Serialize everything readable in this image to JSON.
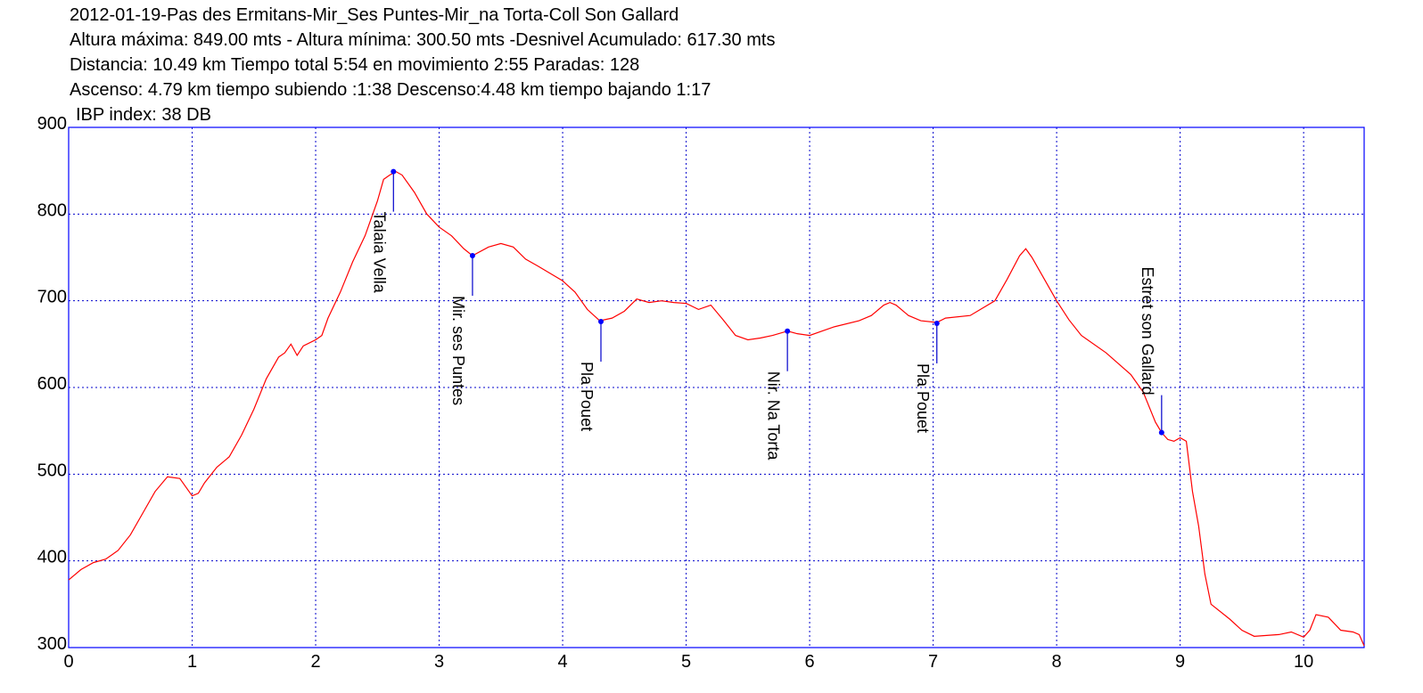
{
  "chart_data": {
    "type": "line",
    "title": "2012-01-19-Pas des Ermitans-Mir_Ses Puntes-Mir_na Torta-Coll Son Gallard",
    "subtitle_lines": [
      "Altura máxima: 849.00 mts - Altura mínima: 300.50 mts -Desnivel Acumulado: 617.30 mts",
      "Distancia: 10.49 km  Tiempo total 5:54  en movimiento 2:55 Paradas: 128",
      "Ascenso: 4.79 km  tiempo subiendo :1:38  Descenso:4.48 km tiempo bajando 1:17",
      "IBP index: 38 DB"
    ],
    "x": [
      0,
      0.1,
      0.2,
      0.3,
      0.4,
      0.5,
      0.6,
      0.7,
      0.8,
      0.9,
      1.0,
      1.05,
      1.1,
      1.2,
      1.3,
      1.4,
      1.5,
      1.6,
      1.7,
      1.75,
      1.8,
      1.85,
      1.9,
      2.0,
      2.05,
      2.1,
      2.2,
      2.3,
      2.4,
      2.5,
      2.55,
      2.6,
      2.65,
      2.7,
      2.8,
      2.9,
      3.0,
      3.1,
      3.2,
      3.27,
      3.4,
      3.5,
      3.6,
      3.7,
      3.8,
      4.0,
      4.1,
      4.2,
      4.3,
      4.4,
      4.5,
      4.6,
      4.7,
      4.8,
      4.9,
      5.0,
      5.1,
      5.2,
      5.3,
      5.4,
      5.5,
      5.6,
      5.7,
      5.82,
      5.9,
      6.0,
      6.1,
      6.2,
      6.4,
      6.5,
      6.6,
      6.65,
      6.7,
      6.8,
      6.9,
      7.03,
      7.1,
      7.3,
      7.5,
      7.6,
      7.7,
      7.75,
      7.8,
      7.9,
      8.0,
      8.1,
      8.2,
      8.4,
      8.6,
      8.7,
      8.8,
      8.85,
      8.9,
      8.95,
      9.0,
      9.05,
      9.1,
      9.15,
      9.2,
      9.25,
      9.4,
      9.5,
      9.6,
      9.8,
      9.9,
      10.0,
      10.05,
      10.1,
      10.2,
      10.3,
      10.4,
      10.45,
      10.49
    ],
    "values": [
      378,
      390,
      398,
      402,
      412,
      430,
      455,
      480,
      497,
      495,
      475,
      478,
      490,
      508,
      520,
      545,
      575,
      610,
      635,
      640,
      650,
      637,
      648,
      655,
      660,
      680,
      710,
      745,
      775,
      815,
      840,
      845,
      849,
      845,
      825,
      800,
      785,
      775,
      760,
      752,
      762,
      766,
      762,
      748,
      740,
      723,
      710,
      690,
      677,
      680,
      688,
      702,
      698,
      700,
      698,
      697,
      690,
      695,
      678,
      660,
      655,
      657,
      660,
      665,
      662,
      660,
      665,
      670,
      677,
      683,
      695,
      698,
      695,
      683,
      677,
      675,
      680,
      683,
      700,
      725,
      752,
      760,
      750,
      725,
      700,
      678,
      660,
      640,
      615,
      595,
      560,
      548,
      540,
      538,
      542,
      538,
      480,
      440,
      385,
      350,
      333,
      320,
      313,
      315,
      318,
      312,
      320,
      338,
      335,
      320,
      318,
      315,
      302
    ],
    "color": "#ff0000",
    "annotations": [
      {
        "x": 2.63,
        "y": 849,
        "label": "Talaia Vella"
      },
      {
        "x": 3.27,
        "y": 752,
        "label": "Mir. ses Puntes"
      },
      {
        "x": 4.31,
        "y": 676,
        "label": "Pla Pouet"
      },
      {
        "x": 5.82,
        "y": 665,
        "label": "Nir. Na Torta"
      },
      {
        "x": 7.03,
        "y": 674,
        "label": "Pla Pouet"
      },
      {
        "x": 8.85,
        "y": 548,
        "label": "Estret son Gallard"
      }
    ],
    "xlim": [
      0,
      10.49
    ],
    "xticks": [
      0,
      1,
      2,
      3,
      4,
      5,
      6,
      7,
      8,
      9,
      10
    ],
    "ylim": [
      300,
      900
    ],
    "yticks": [
      300,
      400,
      500,
      600,
      700,
      800,
      900
    ],
    "grid": true
  }
}
